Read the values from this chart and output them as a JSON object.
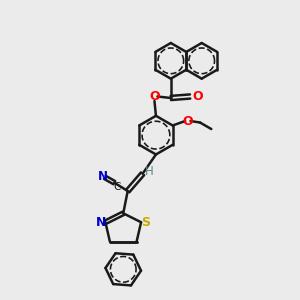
{
  "bg_color": "#ebebeb",
  "atom_color_O": "#ff0000",
  "atom_color_N": "#0000cc",
  "atom_color_S": "#ccaa00",
  "atom_color_H": "#558888",
  "bond_color": "#1a1a1a",
  "bond_width": 1.8,
  "figsize": [
    3.0,
    3.0
  ],
  "dpi": 100,
  "xlim": [
    0,
    10
  ],
  "ylim": [
    0,
    10
  ]
}
